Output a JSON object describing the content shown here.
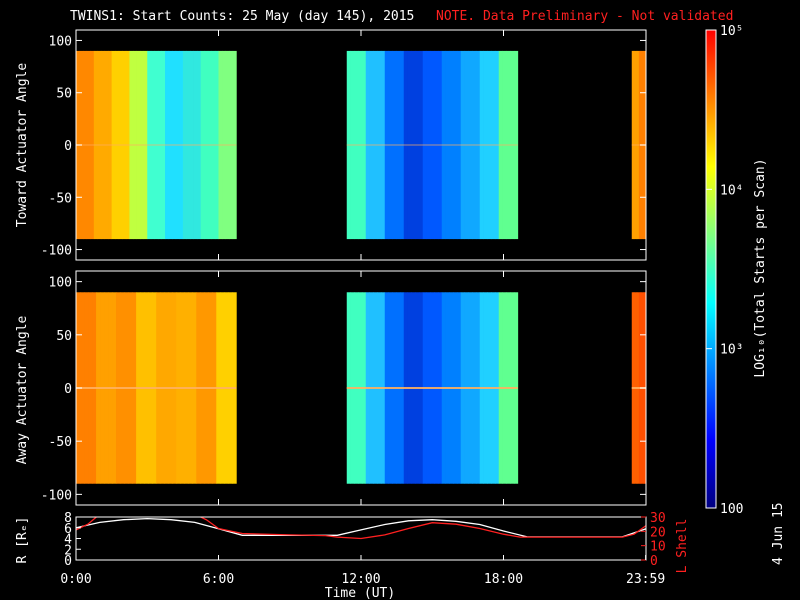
{
  "title": "TWINS1: Start Counts: 25 May (day 145), 2015",
  "note": "NOTE. Data Preliminary - Not validated",
  "side_date": "4 Jun 15",
  "colors": {
    "background": "#000000",
    "frame": "#ffffff",
    "note": "#ff2020",
    "r_line": "#ffffff",
    "lshell_line": "#ff2020"
  },
  "chart_data": [
    {
      "type": "heatmap",
      "name": "toward",
      "ylabel": "Toward Actuator Angle",
      "ylim": [
        -110,
        110
      ],
      "yticks": [
        "100",
        "50",
        "0",
        "-50",
        "-100"
      ],
      "ytick_values": [
        100,
        50,
        0,
        -50,
        -100
      ],
      "xlim_hours": [
        0,
        24
      ],
      "angle_range": [
        -90,
        90
      ],
      "data_blocks_hours": [
        [
          0.0,
          6.75
        ],
        [
          11.4,
          18.6
        ],
        [
          23.4,
          24.0
        ]
      ],
      "block_color_profiles": [
        [
          "#ff8800",
          "#ffaa00",
          "#ffd000",
          "#c0ff40",
          "#40ffd0",
          "#20e0ff",
          "#30e8e0",
          "#40ffc0",
          "#80ff80"
        ],
        [
          "#40ffc0",
          "#20c0ff",
          "#0070ff",
          "#0040e0",
          "#0058ff",
          "#0080ff",
          "#10a8ff",
          "#20d0ff",
          "#60ff90"
        ],
        [
          "#ffa000",
          "#ff8000"
        ]
      ]
    },
    {
      "type": "heatmap",
      "name": "away",
      "ylabel": "Away Actuator Angle",
      "ylim": [
        -110,
        110
      ],
      "yticks": [
        "100",
        "50",
        "0",
        "-50",
        "-100"
      ],
      "ytick_values": [
        100,
        50,
        0,
        -50,
        -100
      ],
      "xlim_hours": [
        0,
        24
      ],
      "angle_range": [
        -90,
        90
      ],
      "data_blocks_hours": [
        [
          0.0,
          6.75
        ],
        [
          11.4,
          18.6
        ],
        [
          23.4,
          24.0
        ]
      ],
      "block_color_profiles": [
        [
          "#ff8000",
          "#ffa000",
          "#ff9000",
          "#ffc000",
          "#ffa800",
          "#ffb000",
          "#ff9800",
          "#ffd000"
        ],
        [
          "#40ffc0",
          "#20c0ff",
          "#0070ff",
          "#0040e0",
          "#0058ff",
          "#0080ff",
          "#10a8ff",
          "#20d0ff",
          "#60ff90"
        ],
        [
          "#ff6000",
          "#ff5000"
        ]
      ]
    },
    {
      "type": "line",
      "name": "orbit",
      "ylabel": "R [Rₑ]",
      "y2label": "L Shell",
      "ylim": [
        0,
        8
      ],
      "yticks": [
        "8",
        "6",
        "4",
        "2",
        "0"
      ],
      "ytick_values": [
        8,
        6,
        4,
        2,
        0
      ],
      "y2lim": [
        0,
        30
      ],
      "y2ticks": [
        "30",
        "20",
        "10",
        "0"
      ],
      "y2tick_values": [
        30,
        20,
        10,
        0
      ],
      "xlabel": "Time (UT)",
      "xlim_hours": [
        0,
        24
      ],
      "xtick_hours": [
        0,
        6,
        12,
        18,
        23.983
      ],
      "xticks": [
        "0:00",
        "6:00",
        "12:00",
        "18:00",
        "23:59"
      ],
      "series": [
        {
          "key": "R",
          "x": [
            0,
            1,
            2,
            3,
            4,
            5,
            6,
            7,
            8,
            9,
            10,
            11,
            12,
            13,
            14,
            15,
            16,
            17,
            18,
            19,
            20,
            21,
            22,
            23,
            24
          ],
          "y": [
            6.0,
            7.0,
            7.5,
            7.7,
            7.5,
            7.0,
            5.8,
            4.6,
            4.6,
            4.6,
            4.6,
            4.6,
            5.6,
            6.6,
            7.3,
            7.5,
            7.2,
            6.6,
            5.4,
            4.3,
            4.3,
            4.3,
            4.3,
            4.3,
            5.8
          ]
        },
        {
          "key": "L",
          "x": [
            0,
            0.5,
            1.0,
            5.0,
            5.5,
            6.0,
            7.0,
            9.0,
            10.5,
            11.0,
            12.0,
            13.0,
            14.0,
            15.0,
            16.0,
            17.0,
            18.0,
            18.7,
            20.0,
            22.0,
            23.0,
            23.5,
            24
          ],
          "y": [
            21,
            25,
            32,
            32,
            28,
            22,
            18.5,
            17.5,
            17,
            16,
            15,
            17.5,
            22,
            26,
            25,
            22,
            18,
            16,
            16,
            16,
            16,
            18,
            24
          ]
        }
      ]
    }
  ],
  "colorbar": {
    "label": "LOG₁₀(Total Starts per Scan)",
    "ticks": [
      "10⁵",
      "10⁴",
      "10³",
      "100"
    ],
    "tick_values": [
      100000,
      10000,
      1000,
      100
    ],
    "scale": "log",
    "range": [
      100,
      100000
    ],
    "colormap": [
      "#000080",
      "#0000ff",
      "#0080ff",
      "#00ffff",
      "#80ff80",
      "#ffff00",
      "#ff8000",
      "#ff0000"
    ]
  }
}
